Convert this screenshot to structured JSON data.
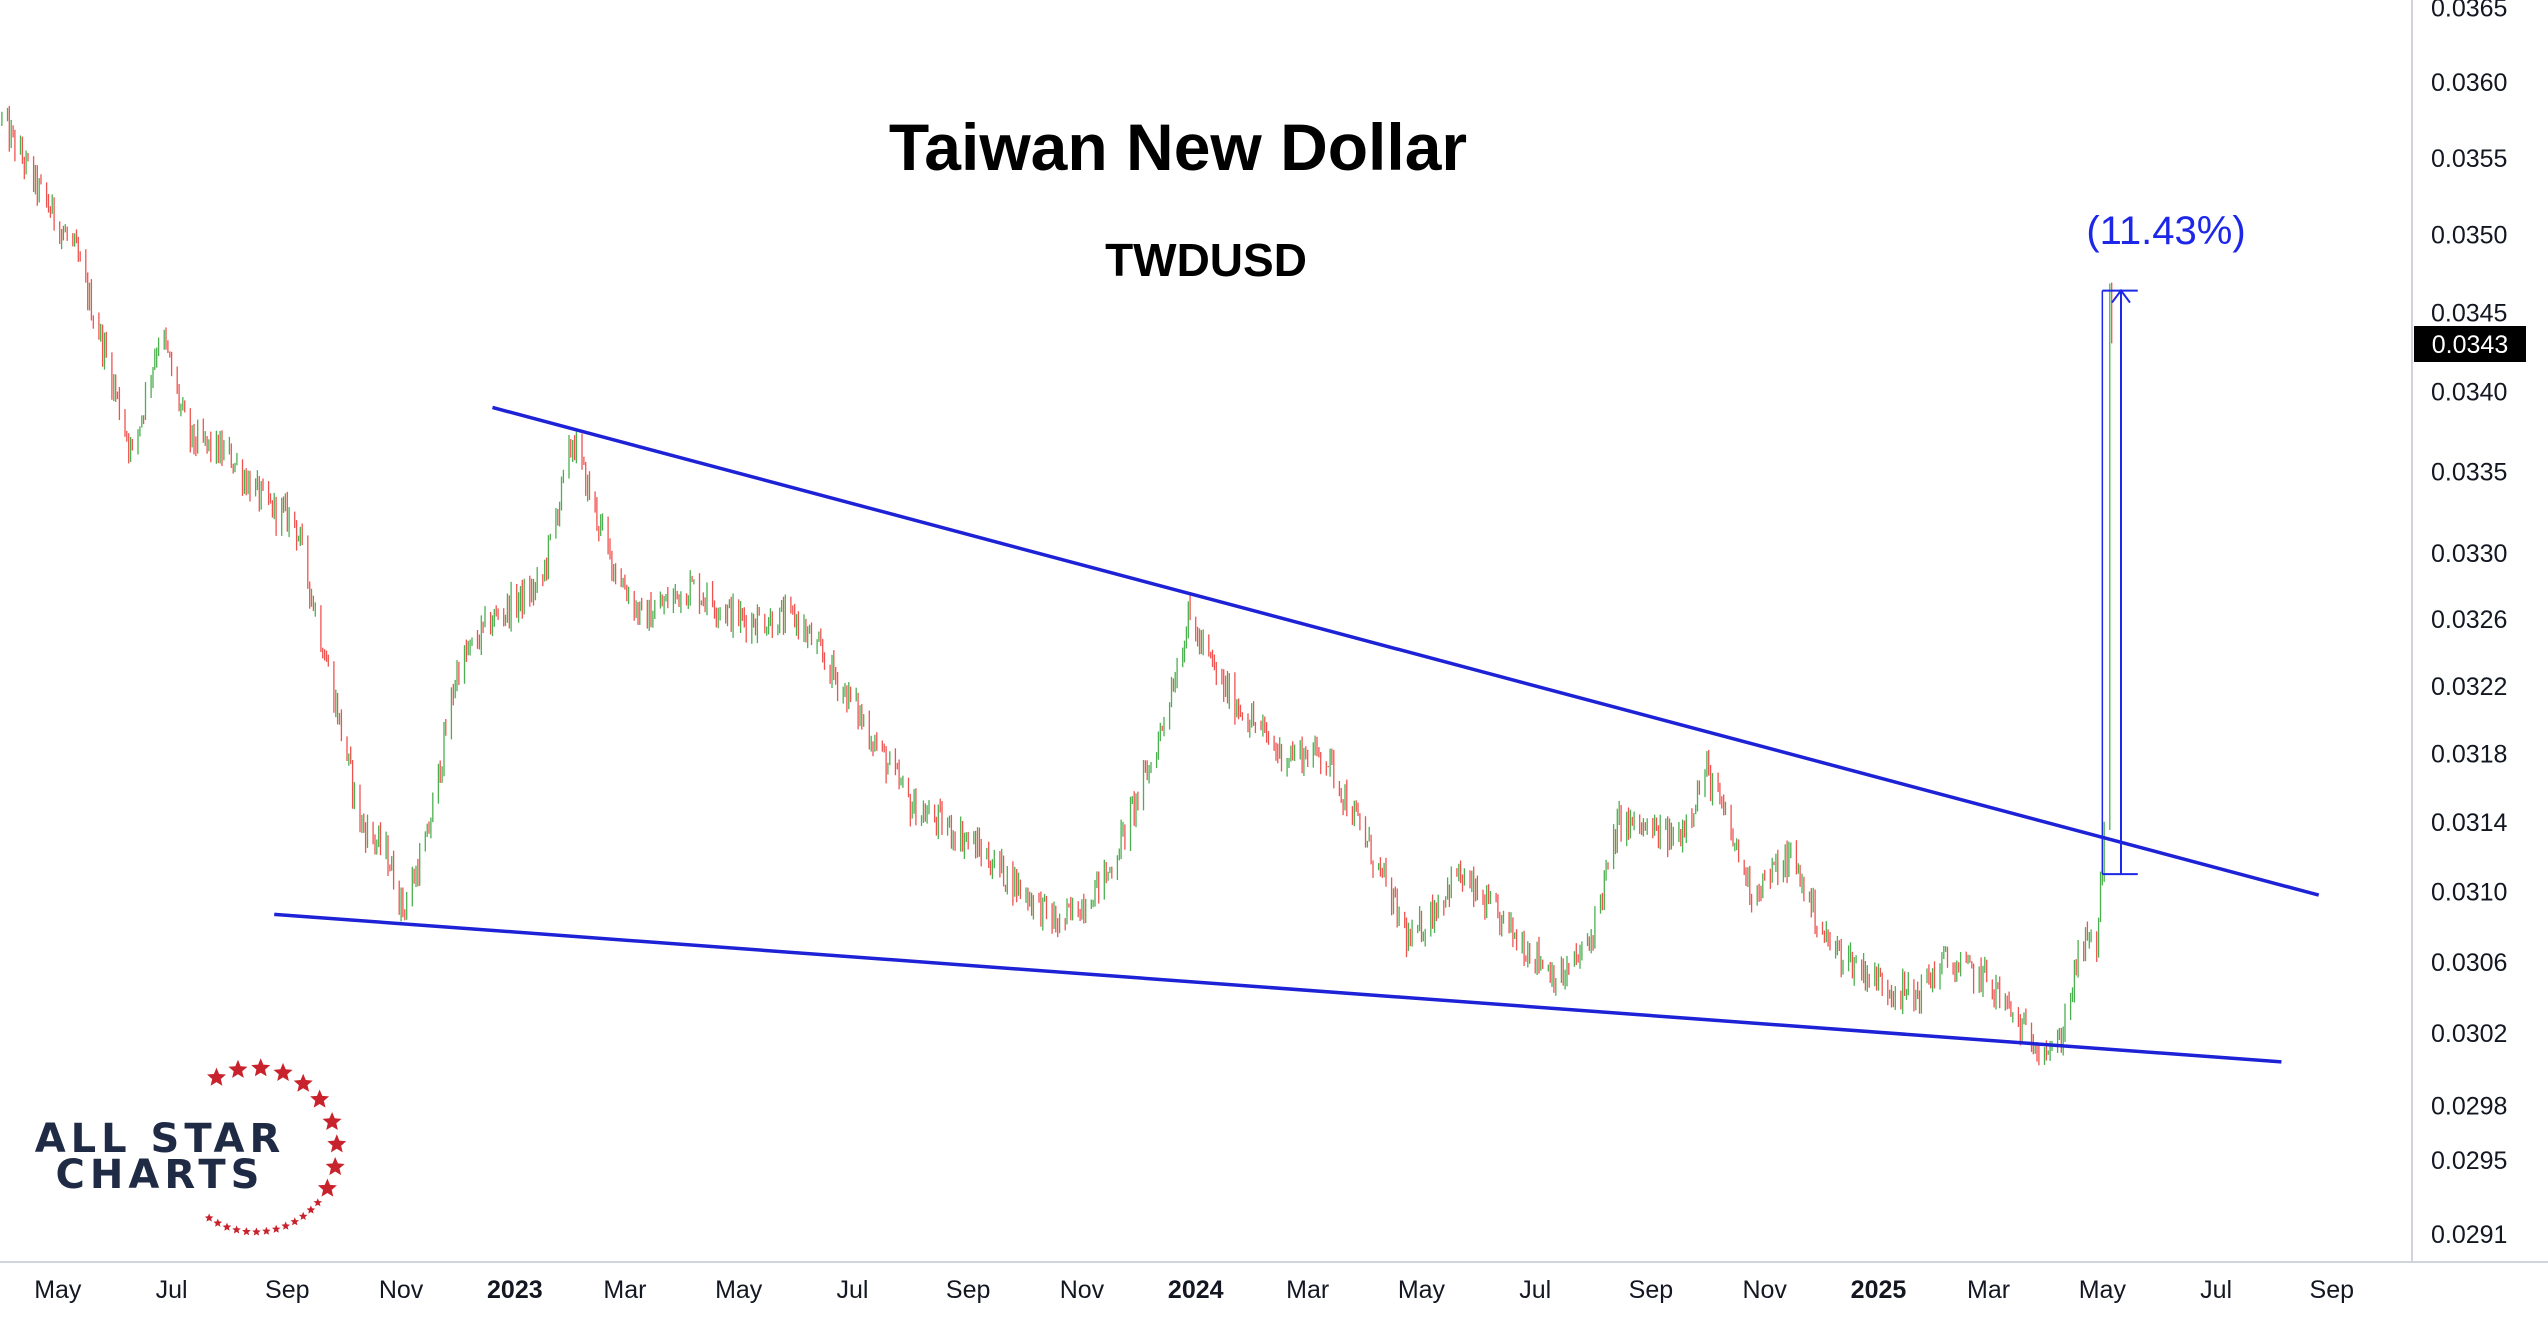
{
  "chart_data": {
    "type": "candlestick",
    "title": "Taiwan New Dollar",
    "subtitle": "TWDUSD",
    "last_price_label": "0.0343",
    "annotation": "(11.43%)",
    "y_axis": {
      "scale": "log",
      "ylim": [
        0.02895,
        0.03655
      ],
      "tick_labels": [
        "0.0365",
        "0.0360",
        "0.0355",
        "0.0350",
        "0.0345",
        "0.0340",
        "0.0335",
        "0.0330",
        "0.0326",
        "0.0322",
        "0.0318",
        "0.0314",
        "0.0310",
        "0.0306",
        "0.0302",
        "0.0298",
        "0.0295",
        "0.0291"
      ]
    },
    "x_axis": {
      "range": [
        "2022-03-31",
        "2025-10-14"
      ],
      "ticks": [
        {
          "label": "May",
          "date": "2022-05-01",
          "bold": false
        },
        {
          "label": "Jul",
          "date": "2022-07-01",
          "bold": false
        },
        {
          "label": "Sep",
          "date": "2022-09-01",
          "bold": false
        },
        {
          "label": "Nov",
          "date": "2022-11-01",
          "bold": false
        },
        {
          "label": "2023",
          "date": "2023-01-01",
          "bold": true
        },
        {
          "label": "Mar",
          "date": "2023-03-01",
          "bold": false
        },
        {
          "label": "May",
          "date": "2023-05-01",
          "bold": false
        },
        {
          "label": "Jul",
          "date": "2023-07-01",
          "bold": false
        },
        {
          "label": "Sep",
          "date": "2023-09-01",
          "bold": false
        },
        {
          "label": "Nov",
          "date": "2023-11-01",
          "bold": false
        },
        {
          "label": "2024",
          "date": "2024-01-01",
          "bold": true
        },
        {
          "label": "Mar",
          "date": "2024-03-01",
          "bold": false
        },
        {
          "label": "May",
          "date": "2024-05-01",
          "bold": false
        },
        {
          "label": "Jul",
          "date": "2024-07-01",
          "bold": false
        },
        {
          "label": "Sep",
          "date": "2024-09-01",
          "bold": false
        },
        {
          "label": "Nov",
          "date": "2024-11-01",
          "bold": false
        },
        {
          "label": "2025",
          "date": "2025-01-01",
          "bold": true
        },
        {
          "label": "Mar",
          "date": "2025-03-01",
          "bold": false
        },
        {
          "label": "May",
          "date": "2025-05-01",
          "bold": false
        },
        {
          "label": "Jul",
          "date": "2025-07-01",
          "bold": false
        },
        {
          "label": "Sep",
          "date": "2025-09-01",
          "bold": false
        }
      ]
    },
    "price_path": [
      [
        "2022-04-01",
        0.03575
      ],
      [
        "2022-04-20",
        0.0353
      ],
      [
        "2022-05-10",
        0.0349
      ],
      [
        "2022-05-25",
        0.0343
      ],
      [
        "2022-06-10",
        0.0336
      ],
      [
        "2022-06-25",
        0.0344
      ],
      [
        "2022-07-10",
        0.0337
      ],
      [
        "2022-08-01",
        0.0336
      ],
      [
        "2022-08-20",
        0.0333
      ],
      [
        "2022-09-05",
        0.0332
      ],
      [
        "2022-09-25",
        0.0322
      ],
      [
        "2022-10-10",
        0.0314
      ],
      [
        "2022-10-25",
        0.0312
      ],
      [
        "2022-11-02",
        0.0309
      ],
      [
        "2022-11-15",
        0.0313
      ],
      [
        "2022-12-01",
        0.0323
      ],
      [
        "2022-12-20",
        0.0326
      ],
      [
        "2023-01-15",
        0.0328
      ],
      [
        "2023-02-01",
        0.0337
      ],
      [
        "2023-02-20",
        0.033
      ],
      [
        "2023-03-10",
        0.0326
      ],
      [
        "2023-04-05",
        0.0328
      ],
      [
        "2023-05-01",
        0.0326
      ],
      [
        "2023-06-01",
        0.0326
      ],
      [
        "2023-07-01",
        0.0321
      ],
      [
        "2023-08-01",
        0.0315
      ],
      [
        "2023-09-01",
        0.0313
      ],
      [
        "2023-10-01",
        0.031
      ],
      [
        "2023-10-20",
        0.0308
      ],
      [
        "2023-11-15",
        0.0311
      ],
      [
        "2023-12-10",
        0.0318
      ],
      [
        "2023-12-28",
        0.0326
      ],
      [
        "2024-01-15",
        0.0322
      ],
      [
        "2024-02-15",
        0.0318
      ],
      [
        "2024-03-10",
        0.0318
      ],
      [
        "2024-04-01",
        0.0313
      ],
      [
        "2024-04-25",
        0.0307
      ],
      [
        "2024-05-20",
        0.0311
      ],
      [
        "2024-06-15",
        0.0308
      ],
      [
        "2024-07-15",
        0.0305
      ],
      [
        "2024-07-30",
        0.0307
      ],
      [
        "2024-08-15",
        0.0314
      ],
      [
        "2024-09-15",
        0.0313
      ],
      [
        "2024-10-01",
        0.0317
      ],
      [
        "2024-10-25",
        0.031
      ],
      [
        "2024-11-15",
        0.0312
      ],
      [
        "2024-12-05",
        0.0307
      ],
      [
        "2024-12-31",
        0.0305
      ],
      [
        "2025-01-20",
        0.0304
      ],
      [
        "2025-02-05",
        0.0306
      ],
      [
        "2025-03-01",
        0.0305
      ],
      [
        "2025-03-20",
        0.0302
      ],
      [
        "2025-04-07",
        0.0301
      ],
      [
        "2025-04-20",
        0.0307
      ],
      [
        "2025-04-28",
        0.0307
      ],
      [
        "2025-05-02",
        0.0313
      ],
      [
        "2025-05-05",
        0.03475
      ],
      [
        "2025-05-06",
        0.0343
      ]
    ],
    "trendlines": [
      {
        "name": "upper",
        "from": [
          "2022-12-20",
          0.0339
        ],
        "to": [
          "2025-08-25",
          0.03098
        ]
      },
      {
        "name": "lower",
        "from": [
          "2022-08-25",
          0.03087
        ],
        "to": [
          "2025-08-05",
          0.03004
        ]
      }
    ],
    "measure": {
      "from": 0.0311,
      "to": 0.03464,
      "x_start": "2025-05-01",
      "x_end": "2025-05-20",
      "arrow_x": "2025-05-11",
      "change_pct": 11.43
    },
    "colors": {
      "up": "#4caf50",
      "down": "#ef5350",
      "trendline": "#1e22d6",
      "annotation": "#1c27e8",
      "price_label_bg": "#000000"
    }
  },
  "logo": {
    "line1": "ALL STAR",
    "line2": "CHARTS",
    "colors": {
      "text": "#1f2a44",
      "stars": "#c8232c"
    }
  }
}
